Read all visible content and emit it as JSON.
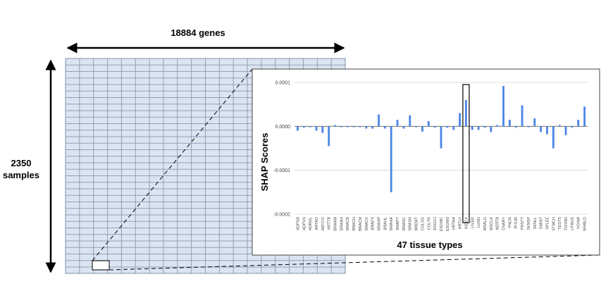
{
  "width_label": "18884 genes",
  "height_label": [
    "2350",
    "samples"
  ],
  "chart_data": {
    "type": "bar",
    "y_label": "SHAP Scores",
    "x_label": "47 tissue types",
    "categories": [
      "ADPSB",
      "ADPVS",
      "ADRGL",
      "ARTAO",
      "ARTCO",
      "ARTTB",
      "BRAAM",
      "BRAAN",
      "BRACB",
      "BRACH",
      "BRACM",
      "BRACX",
      "BRAFX",
      "BRAHP",
      "BRAHL",
      "BRANA",
      "BRAPT",
      "BRASC",
      "BRASN",
      "BREMT",
      "COLSG",
      "COLTR",
      "ESGOJ",
      "ESOMC",
      "ESOMS",
      "HRTAA",
      "HRTLV",
      "KIDCX",
      "LIVER",
      "LUNG",
      "MSALG",
      "MSCLK",
      "NERTB",
      "OVARY",
      "PNCR",
      "PITUR",
      "PRSTT",
      "SKNSP",
      "SKNLL",
      "SMINT",
      "SPLEE",
      "STMCH",
      "TESTS",
      "THYRD",
      "UTRUS",
      "VGINA",
      "WHBLD"
    ],
    "values": [
      -1e-05,
      -3e-06,
      -2e-06,
      -1e-05,
      -1.5e-05,
      -4.5e-05,
      3e-06,
      -2e-06,
      -2e-06,
      -2e-06,
      -2e-06,
      -5e-06,
      -5e-06,
      2.7e-05,
      -5e-06,
      -0.00015,
      1.5e-05,
      -5e-06,
      2.5e-05,
      -2e-06,
      -1.2e-05,
      1.2e-05,
      -3e-06,
      -5e-05,
      -3e-06,
      -8e-06,
      3e-05,
      6e-05,
      -8e-06,
      -8e-06,
      -3e-06,
      -1.3e-05,
      3e-06,
      9.2e-05,
      1.5e-05,
      -3e-06,
      4.8e-05,
      -2e-06,
      1.8e-05,
      -1.3e-05,
      -1.8e-05,
      -5e-05,
      3e-06,
      -2e-05,
      -3e-06,
      1.5e-05,
      4.5e-05
    ],
    "color": "#4a86e8",
    "ylim": [
      -0.0002,
      0.0001
    ],
    "yticks": [
      0.0001,
      {
        "value": 0,
        "label": "0.0000"
      },
      -0.0001,
      -0.0002
    ],
    "grid": true,
    "highlight_category": "KIDCX"
  }
}
